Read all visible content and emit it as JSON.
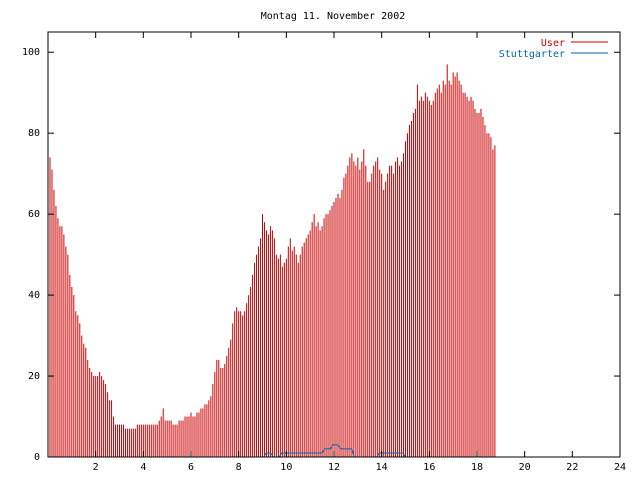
{
  "chart_data": {
    "type": "bar",
    "title": "Montag 11. November 2002",
    "xlabel": "",
    "ylabel": "",
    "xlim": [
      0,
      24
    ],
    "ylim": [
      0,
      105
    ],
    "xticks": [
      "2",
      "4",
      "6",
      "8",
      "10",
      "12",
      "14",
      "16",
      "18",
      "20",
      "22",
      "24"
    ],
    "yticks": [
      "0",
      "20",
      "40",
      "60",
      "80",
      "100"
    ],
    "grid": false,
    "legend_position": "top-right",
    "series": [
      {
        "name": "User",
        "style": "impulses",
        "color": "#cc0000",
        "step_minutes": 5,
        "values": [
          75,
          74,
          71,
          66,
          62,
          59,
          57,
          57,
          55,
          52,
          50,
          45,
          42,
          40,
          36,
          35,
          33,
          30,
          28,
          27,
          24,
          22,
          21,
          20,
          20,
          20,
          21,
          20,
          19,
          18,
          16,
          14,
          14,
          10,
          8,
          8,
          8,
          8,
          8,
          7,
          7,
          7,
          7,
          7,
          7,
          8,
          8,
          8,
          8,
          8,
          8,
          8,
          8,
          8,
          8,
          8,
          9,
          10,
          12,
          9,
          9,
          9,
          9,
          8,
          8,
          8,
          9,
          9,
          9,
          10,
          10,
          10,
          11,
          10,
          10,
          11,
          11,
          12,
          12,
          13,
          13,
          14,
          15,
          18,
          21,
          24,
          24,
          22,
          22,
          23,
          25,
          27,
          29,
          33,
          36,
          37,
          36,
          36,
          35,
          36,
          38,
          40,
          42,
          45,
          48,
          50,
          52,
          54,
          60,
          58,
          56,
          55,
          57,
          56,
          54,
          50,
          49,
          50,
          47,
          48,
          49,
          52,
          54,
          51,
          52,
          50,
          48,
          50,
          52,
          53,
          54,
          55,
          56,
          58,
          60,
          57,
          58,
          56,
          57,
          59,
          60,
          60,
          61,
          62,
          63,
          64,
          65,
          64,
          66,
          69,
          70,
          72,
          74,
          75,
          73,
          72,
          74,
          71,
          73,
          76,
          72,
          68,
          68,
          70,
          72,
          73,
          74,
          71,
          70,
          66,
          68,
          70,
          72,
          72,
          70,
          73,
          74,
          72,
          73,
          75,
          78,
          80,
          82,
          83,
          85,
          86,
          92,
          88,
          89,
          88,
          90,
          89,
          88,
          87,
          88,
          90,
          91,
          92,
          90,
          93,
          92,
          97,
          93,
          92,
          95,
          94,
          95,
          93,
          92,
          90,
          90,
          89,
          88,
          89,
          88,
          86,
          85,
          85,
          86,
          84,
          82,
          80,
          80,
          79,
          76,
          77
        ]
      },
      {
        "name": "Stuttgarter",
        "style": "line",
        "color": "#0066aa",
        "points": [
          [
            0,
            0
          ],
          [
            9.05,
            0
          ],
          [
            9.15,
            1
          ],
          [
            9.35,
            1
          ],
          [
            9.45,
            0
          ],
          [
            9.7,
            0
          ],
          [
            9.8,
            1
          ],
          [
            11.5,
            1
          ],
          [
            11.6,
            2
          ],
          [
            11.85,
            2
          ],
          [
            11.95,
            3
          ],
          [
            12.15,
            3
          ],
          [
            12.3,
            2
          ],
          [
            12.75,
            2
          ],
          [
            12.85,
            0
          ],
          [
            13.8,
            0
          ],
          [
            13.9,
            1
          ],
          [
            14.9,
            1
          ],
          [
            15.0,
            0
          ],
          [
            24,
            0
          ]
        ]
      }
    ]
  }
}
